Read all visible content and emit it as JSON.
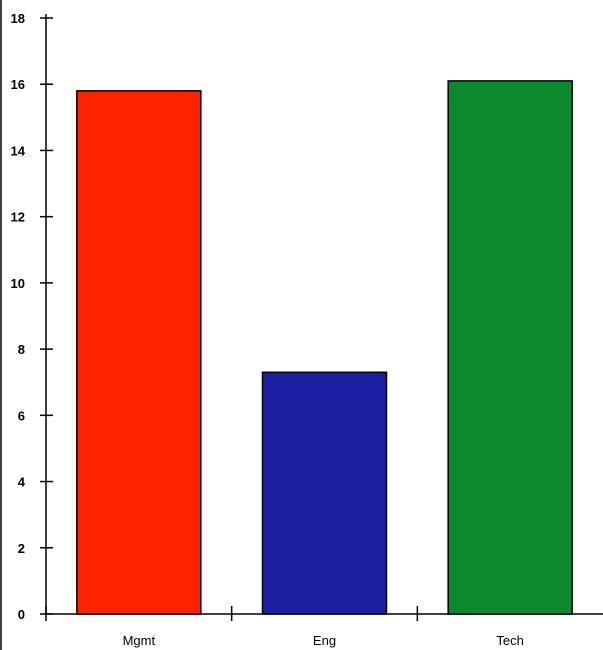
{
  "chart_data": {
    "type": "bar",
    "title": "",
    "xlabel": "",
    "ylabel": "",
    "categories": [
      "Mgmt",
      "Eng",
      "Tech"
    ],
    "values": [
      15.8,
      7.3,
      16.1
    ],
    "colors": [
      "#ff2200",
      "#1a1ea0",
      "#0a8a2c"
    ],
    "ylim": [
      0,
      18
    ],
    "yticks": [
      0,
      2,
      4,
      6,
      8,
      10,
      12,
      14,
      16,
      18
    ],
    "grid": false,
    "legend": "none"
  }
}
